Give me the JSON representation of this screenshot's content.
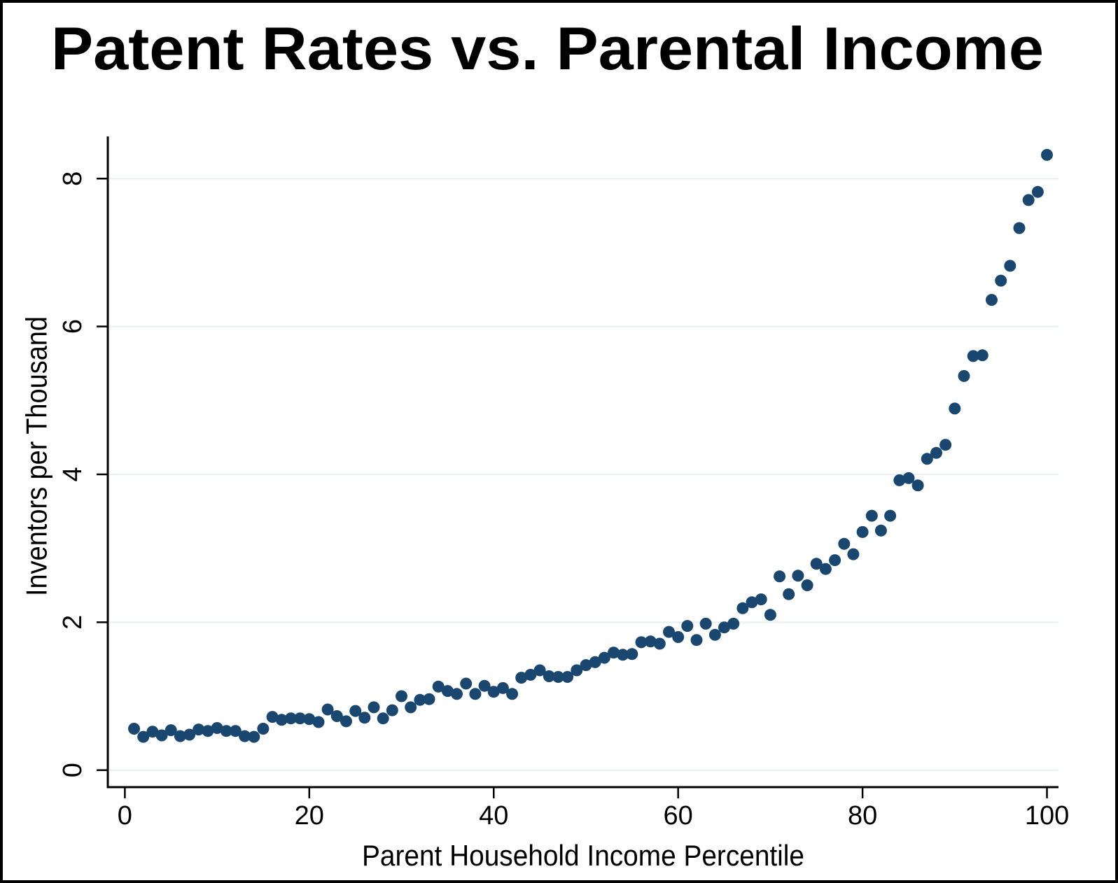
{
  "title": "Patent Rates vs. Parental Income",
  "chart_data": {
    "type": "scatter",
    "title": "Patent Rates vs. Parental Income",
    "xlabel": "Parent Household Income Percentile",
    "ylabel": "Inventors per Thousand",
    "xlim": [
      -1.85,
      101.25
    ],
    "ylim": [
      -0.23,
      8.57
    ],
    "x_ticks": [
      0,
      20,
      40,
      60,
      80,
      100
    ],
    "y_ticks": [
      0,
      2,
      4,
      6,
      8
    ],
    "grid": "horizontal-only",
    "legend": "none",
    "point_color": "#1a476f",
    "gridline_color": "#e6f0ef",
    "axis_color": "#000000",
    "background_color": "#ffffff",
    "x": [
      1,
      2,
      3,
      4,
      5,
      6,
      7,
      8,
      9,
      10,
      11,
      12,
      13,
      14,
      15,
      16,
      17,
      18,
      19,
      20,
      21,
      22,
      23,
      24,
      25,
      26,
      27,
      28,
      29,
      30,
      31,
      32,
      33,
      34,
      35,
      36,
      37,
      38,
      39,
      40,
      41,
      42,
      43,
      44,
      45,
      46,
      47,
      48,
      49,
      50,
      51,
      52,
      53,
      54,
      55,
      56,
      57,
      58,
      59,
      60,
      61,
      62,
      63,
      64,
      65,
      66,
      67,
      68,
      69,
      70,
      71,
      72,
      73,
      74,
      75,
      76,
      77,
      78,
      79,
      80,
      81,
      82,
      83,
      84,
      85,
      86,
      87,
      88,
      89,
      90,
      91,
      92,
      93,
      94,
      95,
      96,
      97,
      98,
      99,
      100
    ],
    "y": [
      0.56,
      0.45,
      0.52,
      0.47,
      0.54,
      0.46,
      0.48,
      0.55,
      0.53,
      0.57,
      0.53,
      0.53,
      0.46,
      0.45,
      0.56,
      0.72,
      0.68,
      0.7,
      0.7,
      0.69,
      0.65,
      0.82,
      0.73,
      0.66,
      0.8,
      0.71,
      0.85,
      0.7,
      0.81,
      1.0,
      0.85,
      0.95,
      0.96,
      1.13,
      1.07,
      1.03,
      1.17,
      1.03,
      1.14,
      1.06,
      1.11,
      1.03,
      1.25,
      1.29,
      1.35,
      1.27,
      1.26,
      1.26,
      1.35,
      1.42,
      1.46,
      1.52,
      1.59,
      1.56,
      1.57,
      1.73,
      1.74,
      1.71,
      1.87,
      1.8,
      1.95,
      1.76,
      1.98,
      1.83,
      1.93,
      1.98,
      2.19,
      2.27,
      2.31,
      2.1,
      2.62,
      2.38,
      2.63,
      2.5,
      2.79,
      2.72,
      2.84,
      3.06,
      2.92,
      3.22,
      3.44,
      3.24,
      3.44,
      3.92,
      3.95,
      3.85,
      4.21,
      4.29,
      4.4,
      4.89,
      5.33,
      5.6,
      5.61,
      6.36,
      6.62,
      6.82,
      7.33,
      7.71,
      7.82,
      8.32
    ]
  }
}
